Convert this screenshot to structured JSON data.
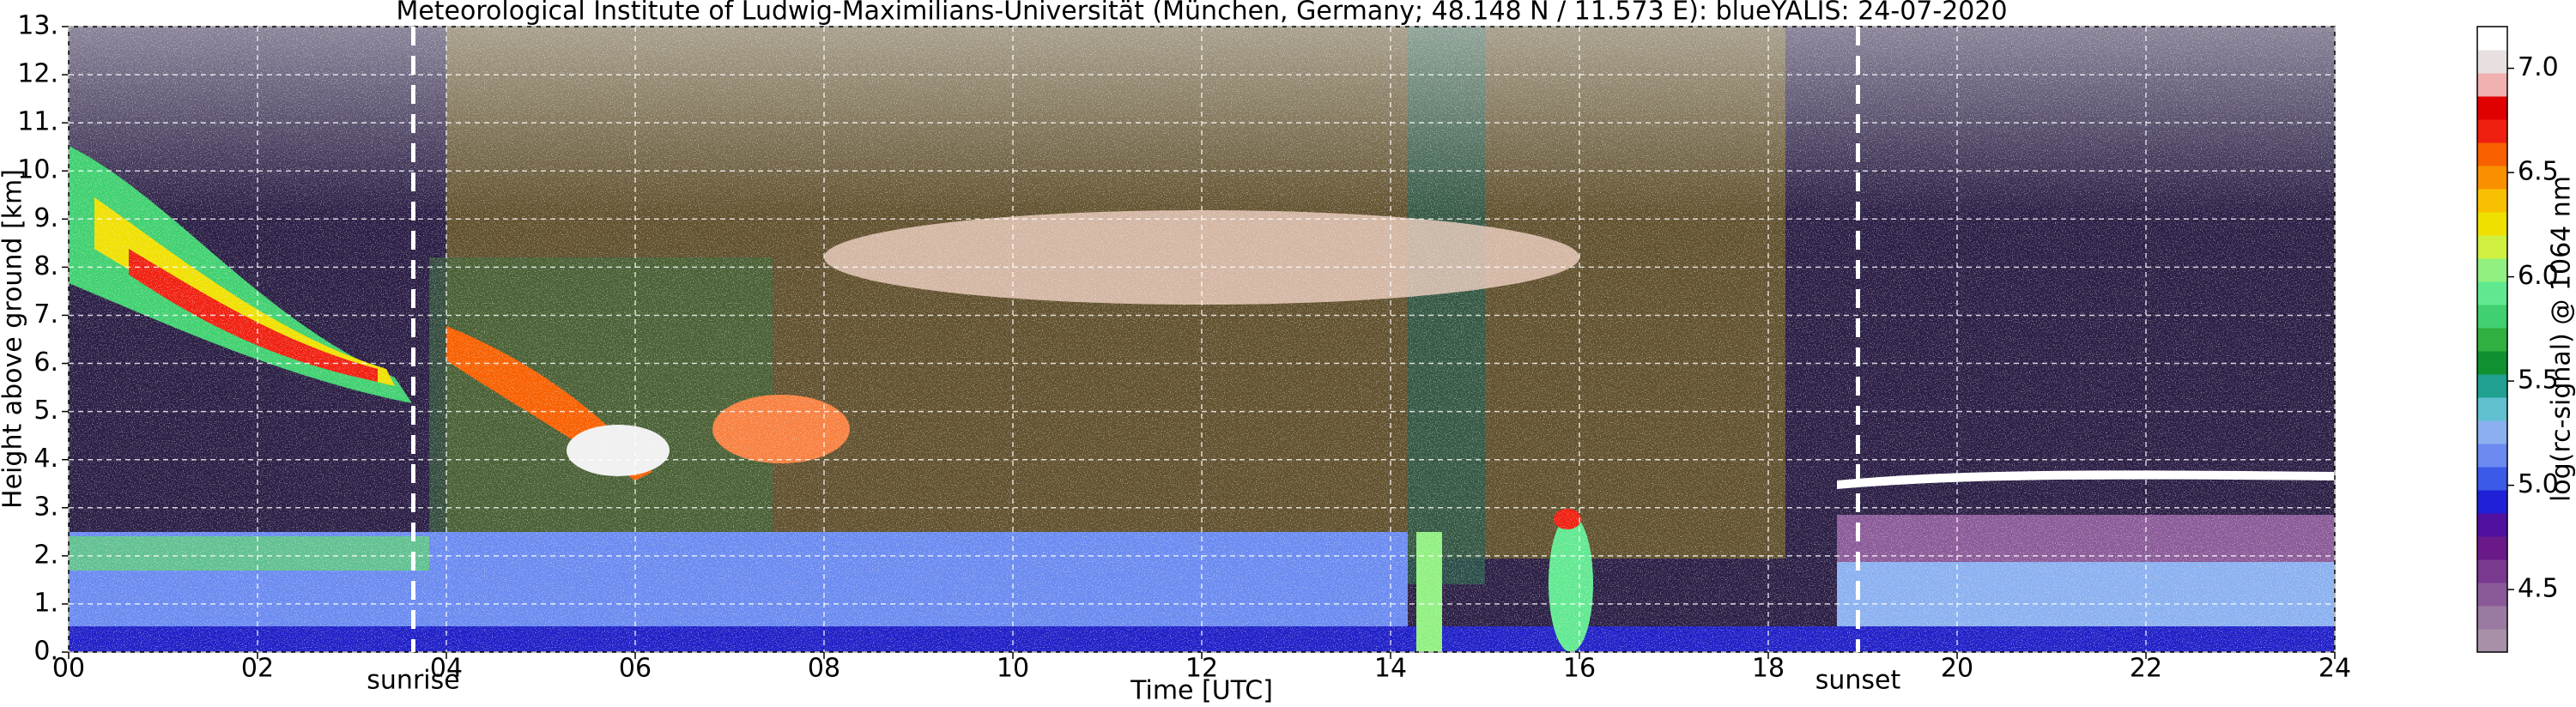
{
  "chart_data": {
    "type": "heatmap",
    "title": "Meteorological Institute of Ludwig-Maximilians-Universität (München, Germany; 48.148 N / 11.573 E):    blueYALIS: 24-07-2020",
    "xlabel": "Time [UTC]",
    "ylabel": "Height above ground [km]",
    "xlim": [
      0,
      24
    ],
    "ylim": [
      0,
      13
    ],
    "xticks": [
      {
        "value": 0,
        "label": "00"
      },
      {
        "value": 2,
        "label": "02"
      },
      {
        "value": 4,
        "label": "04"
      },
      {
        "value": 6,
        "label": "06"
      },
      {
        "value": 8,
        "label": "08"
      },
      10,
      12,
      14,
      16,
      18,
      20,
      22,
      24
    ],
    "yticks": [
      {
        "value": 0,
        "label": "0."
      },
      {
        "value": 1,
        "label": "1."
      },
      {
        "value": 2,
        "label": "2."
      },
      {
        "value": 3,
        "label": "3."
      },
      {
        "value": 4,
        "label": "4."
      },
      {
        "value": 5,
        "label": "5."
      },
      {
        "value": 6,
        "label": "6."
      },
      {
        "value": 7,
        "label": "7."
      },
      {
        "value": 8,
        "label": "8."
      },
      {
        "value": 9,
        "label": "9."
      },
      {
        "value": 10,
        "label": "10."
      },
      {
        "value": 11,
        "label": "11."
      },
      {
        "value": 12,
        "label": "12."
      },
      {
        "value": 13,
        "label": "13."
      }
    ],
    "grid": true,
    "annotations": [
      {
        "label": "sunrise",
        "x": 3.65
      },
      {
        "label": "sunset",
        "x": 18.95
      }
    ],
    "colorbar": {
      "label": "log(rc-signal) @ 1064 nm",
      "lim": [
        4.2,
        7.2
      ],
      "ticks": [
        4.5,
        {
          "value": 5,
          "label": "5.0"
        },
        5.5,
        {
          "value": 6,
          "label": "6.0"
        },
        6.5,
        {
          "value": 7,
          "label": "7.0"
        }
      ],
      "colors": [
        "#a890a8",
        "#9a7aa0",
        "#8a5a98",
        "#7a3a90",
        "#6a1a88",
        "#5010a0",
        "#2020d8",
        "#3a5ae8",
        "#6a8af0",
        "#8ab0f0",
        "#60c0d0",
        "#20a090",
        "#109030",
        "#30b040",
        "#40d070",
        "#60e890",
        "#90f080",
        "#d0f040",
        "#f0e000",
        "#f8c000",
        "#f89000",
        "#f86000",
        "#f02010",
        "#e00000",
        "#f0b0b0",
        "#e8e0e0",
        "#ffffff"
      ]
    }
  }
}
